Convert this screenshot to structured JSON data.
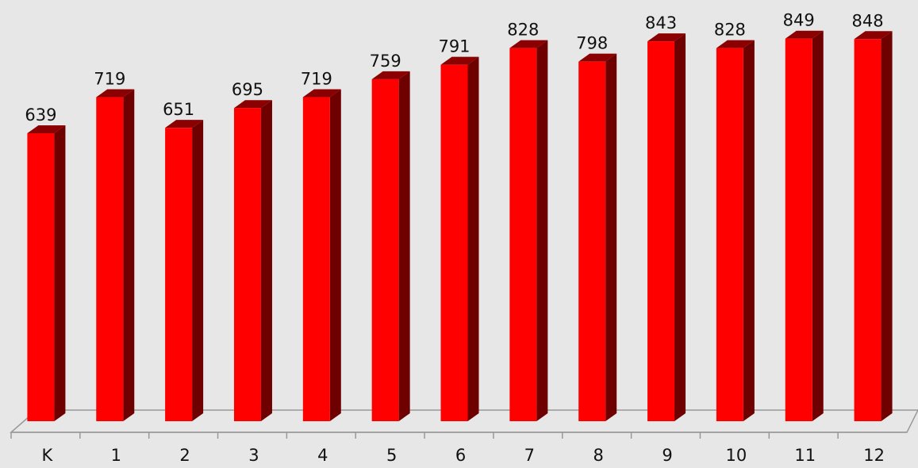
{
  "chart_data": {
    "type": "bar",
    "title": "",
    "xlabel": "",
    "ylabel": "",
    "categories": [
      "K",
      "1",
      "2",
      "3",
      "4",
      "5",
      "6",
      "7",
      "8",
      "9",
      "10",
      "11",
      "12"
    ],
    "values": [
      639,
      719,
      651,
      695,
      719,
      759,
      791,
      828,
      798,
      843,
      828,
      849,
      848
    ],
    "data_labels": [
      "639",
      "719",
      "651",
      "695",
      "719",
      "759",
      "791",
      "828",
      "798",
      "843",
      "828",
      "849",
      "848"
    ],
    "ylim": [
      0,
      850
    ],
    "grid": false,
    "legend": "none",
    "style": "3d-column"
  },
  "colors": {
    "background": "#e7e7e7",
    "bar_front": "#ff0000",
    "bar_side": "#6e0000",
    "bar_top": "#8b0000",
    "floor": "#999999"
  }
}
